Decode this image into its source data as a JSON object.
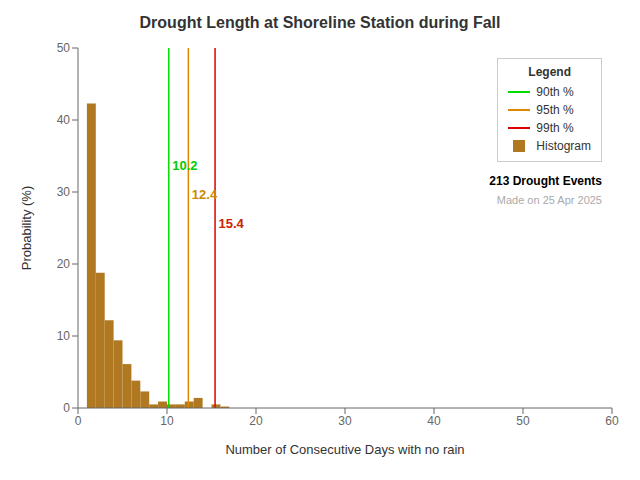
{
  "chart_data": {
    "type": "histogram",
    "title": "Drought Length at Shoreline Station during Fall",
    "xlabel": "Number of Consecutive Days with no rain",
    "ylabel": "Probability (%)",
    "bins": [
      1,
      2,
      3,
      4,
      5,
      6,
      7,
      8,
      9,
      10,
      11,
      12,
      13,
      14,
      15,
      16,
      17,
      18,
      19,
      20,
      21
    ],
    "series": [
      {
        "name": "Histogram",
        "color": "#b07820",
        "values": [
          42.3,
          18.8,
          12.2,
          9.4,
          6.1,
          3.8,
          2.3,
          0.5,
          0.9,
          0.5,
          0.5,
          0.9,
          1.4,
          0.0,
          0.5,
          0.2,
          0.0,
          0.0,
          0.0,
          0.0
        ]
      }
    ],
    "lines": [
      {
        "name": "90th %",
        "x": 10.2,
        "color": "#00dd00"
      },
      {
        "name": "95th %",
        "x": 12.4,
        "color": "#dd8800"
      },
      {
        "name": "99th %",
        "x": 15.4,
        "color": "#dd0000"
      }
    ],
    "annotations": [
      {
        "text": "10.2",
        "x": 10.2,
        "y": 33,
        "color": "#00cc00"
      },
      {
        "text": "12.4",
        "x": 12.4,
        "y": 29,
        "color": "#cc8800"
      },
      {
        "text": "15.4",
        "x": 15.4,
        "y": 25,
        "color": "#cc2200"
      },
      {
        "text": "213 Drought Events",
        "color": "black"
      },
      {
        "text": "Made on 25 Apr 2025",
        "color": "#aaaaaa"
      }
    ],
    "legend": "upper right",
    "legend_title": "Legend",
    "xlim": [
      0,
      60
    ],
    "ylim": [
      0,
      50
    ],
    "xticks": [
      0,
      10,
      20,
      30,
      40,
      50,
      60
    ],
    "yticks": [
      0,
      10,
      20,
      30,
      40,
      50
    ],
    "grid": false
  }
}
